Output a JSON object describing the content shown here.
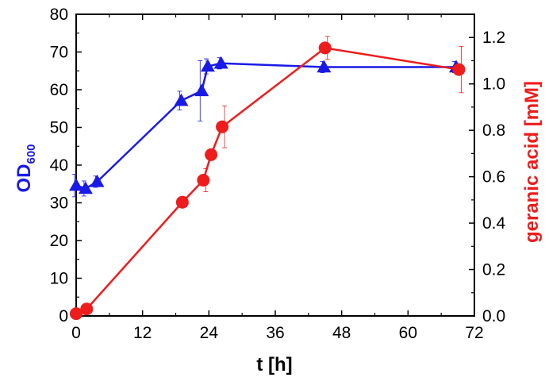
{
  "chart_data": {
    "type": "line",
    "title": "",
    "x_axis": {
      "label": "t [h]",
      "range": [
        0,
        72
      ],
      "ticks": [
        0,
        12,
        24,
        36,
        48,
        60,
        72
      ],
      "tick_labels": [
        "0",
        "12",
        "24",
        "36",
        "48",
        "60",
        "72"
      ]
    },
    "y_left": {
      "label_main": "OD",
      "label_subscript": "600",
      "range": [
        0,
        80
      ],
      "ticks": [
        0,
        10,
        20,
        30,
        40,
        50,
        60,
        70,
        80
      ],
      "tick_labels": [
        "0",
        "10",
        "20",
        "30",
        "40",
        "50",
        "60",
        "70",
        "80"
      ],
      "color": "#1a1ae6"
    },
    "y_right": {
      "label": "geranic acid [mM]",
      "range": [
        0.0,
        1.3
      ],
      "ticks": [
        0.0,
        0.2,
        0.4,
        0.6,
        0.8,
        1.0,
        1.2
      ],
      "tick_labels": [
        "0.0",
        "0.2",
        "0.4",
        "0.6",
        "0.8",
        "1.0",
        "1.2"
      ],
      "color": "#ee1c1c"
    },
    "series": [
      {
        "name": "OD600",
        "axis": "left",
        "marker": "triangle",
        "color": "#1a1ae6",
        "x": [
          0,
          1.7,
          3.8,
          19,
          22.7,
          23.8,
          26.2,
          44.8,
          68.7
        ],
        "y": [
          34.6,
          33.8,
          35.6,
          57.1,
          59.7,
          66.2,
          67.0,
          66.0,
          66.0
        ],
        "error": [
          3.0,
          2.0,
          1.5,
          2.5,
          8.0,
          2.0,
          1.5,
          1.5,
          1.5
        ]
      },
      {
        "name": "geranic acid",
        "axis": "right",
        "marker": "circle",
        "color": "#ee1c1c",
        "x": [
          0,
          1.9,
          19.2,
          23,
          24.4,
          26.4,
          45,
          69.2
        ],
        "y": [
          0.01,
          0.03,
          0.49,
          0.585,
          0.695,
          0.815,
          1.155,
          1.062
        ],
        "error": [
          0.0,
          0.0,
          0.02,
          0.05,
          0.0,
          0.09,
          0.05,
          0.1
        ]
      }
    ]
  }
}
